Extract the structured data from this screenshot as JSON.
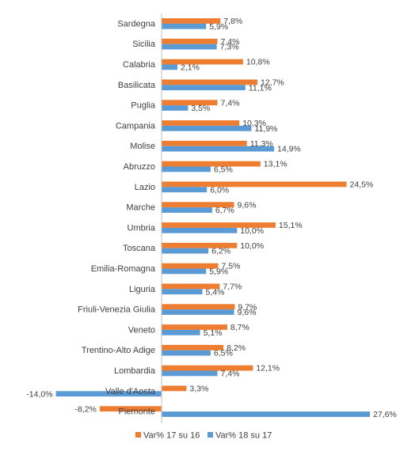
{
  "chart_data": {
    "type": "bar",
    "orientation": "horizontal",
    "title": "",
    "xlabel": "",
    "ylabel": "",
    "xlim": [
      -15,
      28
    ],
    "grid": false,
    "legend_position": "bottom",
    "categories": [
      "Sardegna",
      "Sicilia",
      "Calabria",
      "Basilicata",
      "Puglia",
      "Campania",
      "Molise",
      "Abruzzo",
      "Lazio",
      "Marche",
      "Umbria",
      "Toscana",
      "Emilia-Romagna",
      "Liguria",
      "Friuli-Venezia Giulia",
      "Veneto",
      "Trentino-Alto Adige",
      "Lombardia",
      "Valle d'Aosta",
      "Piemonte"
    ],
    "series": [
      {
        "name": "Var% 17 su 16",
        "color": "#ED7D31",
        "values": [
          7.8,
          7.4,
          10.8,
          12.7,
          7.4,
          10.3,
          11.3,
          13.1,
          24.5,
          9.6,
          15.1,
          10.0,
          7.5,
          7.7,
          9.7,
          8.7,
          8.2,
          12.1,
          3.3,
          -8.2
        ],
        "labels": [
          "7,8%",
          "7,4%",
          "10,8%",
          "12,7%",
          "7,4%",
          "10,3%",
          "11,3%",
          "13,1%",
          "24,5%",
          "9,6%",
          "15,1%",
          "10,0%",
          "7,5%",
          "7,7%",
          "9,7%",
          "8,7%",
          "8,2%",
          "12,1%",
          "3,3%",
          "-8,2%"
        ]
      },
      {
        "name": "Var% 18 su 17",
        "color": "#5B9BD5",
        "values": [
          5.9,
          7.3,
          2.1,
          11.1,
          3.5,
          11.9,
          14.9,
          6.5,
          6.0,
          6.7,
          10.0,
          6.2,
          5.9,
          5.4,
          9.6,
          5.1,
          6.5,
          7.4,
          -14.0,
          27.6
        ],
        "labels": [
          "5,9%",
          "7,3%",
          "2,1%",
          "11,1%",
          "3,5%",
          "11,9%",
          "14,9%",
          "6,5%",
          "6,0%",
          "6,7%",
          "10,0%",
          "6,2%",
          "5,9%",
          "5,4%",
          "9,6%",
          "5,1%",
          "6,5%",
          "7,4%",
          "-14,0%",
          "27,6%"
        ]
      }
    ]
  }
}
